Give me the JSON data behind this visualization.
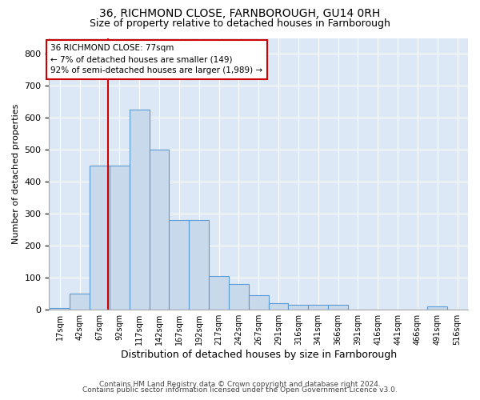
{
  "title1": "36, RICHMOND CLOSE, FARNBOROUGH, GU14 0RH",
  "title2": "Size of property relative to detached houses in Farnborough",
  "xlabel": "Distribution of detached houses by size in Farnborough",
  "ylabel": "Number of detached properties",
  "footnote1": "Contains HM Land Registry data © Crown copyright and database right 2024.",
  "footnote2": "Contains public sector information licensed under the Open Government Licence v3.0.",
  "annotation_line1": "36 RICHMOND CLOSE: 77sqm",
  "annotation_line2": "← 7% of detached houses are smaller (149)",
  "annotation_line3": "92% of semi-detached houses are larger (1,989) →",
  "bar_color": "#c9d9ec",
  "bar_edge_color": "#5b9bd5",
  "line_color": "#cc0000",
  "background_color": "#dce8f5",
  "bin_labels": [
    "17sqm",
    "42sqm",
    "67sqm",
    "92sqm",
    "117sqm",
    "142sqm",
    "167sqm",
    "192sqm",
    "217sqm",
    "242sqm",
    "267sqm",
    "291sqm",
    "316sqm",
    "341sqm",
    "366sqm",
    "391sqm",
    "416sqm",
    "441sqm",
    "466sqm",
    "491sqm",
    "516sqm"
  ],
  "bar_heights": [
    5,
    50,
    450,
    450,
    625,
    500,
    280,
    280,
    105,
    80,
    45,
    20,
    15,
    15,
    15,
    0,
    0,
    0,
    0,
    10,
    0
  ],
  "property_line_x": 77,
  "bin_width": 25,
  "bin_starts": [
    4,
    29,
    54,
    79,
    104,
    129,
    154,
    179,
    204,
    229,
    254,
    279,
    304,
    329,
    354,
    379,
    404,
    429,
    454,
    479,
    504
  ],
  "ylim": [
    0,
    850
  ],
  "yticks": [
    0,
    100,
    200,
    300,
    400,
    500,
    600,
    700,
    800
  ],
  "title1_fontsize": 10,
  "title2_fontsize": 9,
  "footnote_fontsize": 6.5,
  "ylabel_fontsize": 8,
  "xlabel_fontsize": 9
}
